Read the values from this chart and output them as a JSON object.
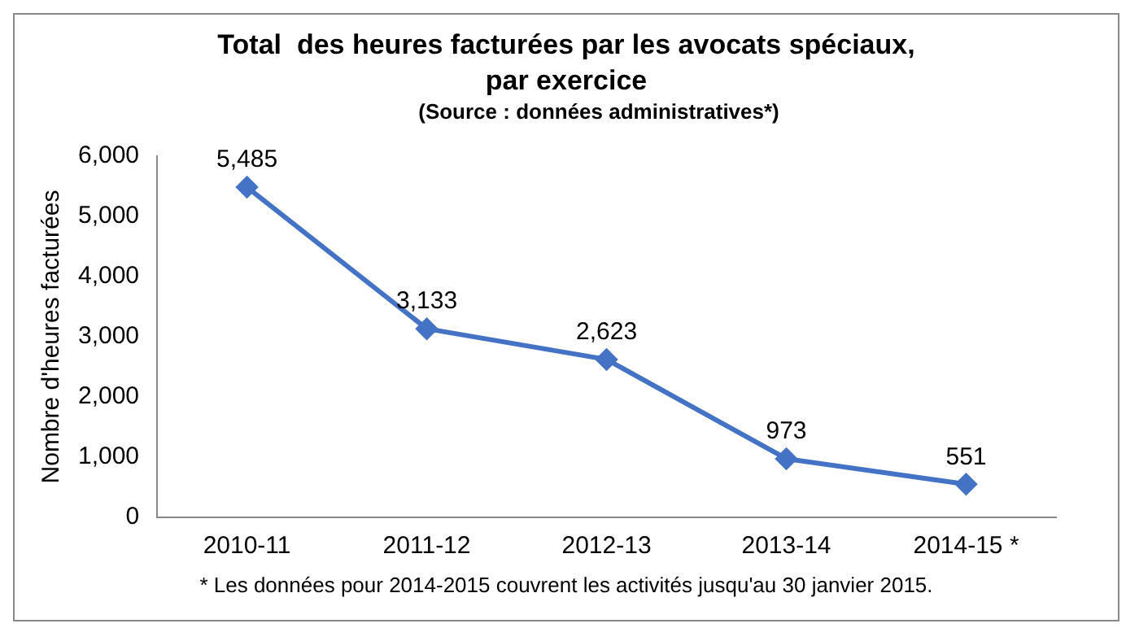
{
  "chart_data": {
    "type": "line",
    "title": "Total  des heures facturées par les avocats spéciaux, par exercice",
    "subtitle": "(Source : données administratives*)",
    "ylabel": "Nombre d'heures facturées",
    "categories": [
      "2010-11",
      "2011-12",
      "2012-13",
      "2013-14",
      "2014-15 *"
    ],
    "series": [
      {
        "color": "#4472c4",
        "values": [
          5485,
          3133,
          2623,
          973,
          551
        ],
        "value_labels": [
          "5,485",
          "3,133",
          "2,623",
          "973",
          "551"
        ]
      }
    ],
    "ylim": [
      0,
      6000
    ],
    "yticks": [
      {
        "value": 0,
        "label": "0"
      },
      {
        "value": 1000,
        "label": "1,000"
      },
      {
        "value": 2000,
        "label": "2,000"
      },
      {
        "value": 3000,
        "label": "3,000"
      },
      {
        "value": 4000,
        "label": "4,000"
      },
      {
        "value": 5000,
        "label": "5,000"
      },
      {
        "value": 6000,
        "label": "6,000"
      }
    ],
    "grid": false,
    "legend": false,
    "marker": "diamond",
    "line_style": "solid",
    "annotations": [
      "* Les données pour 2014-2015 couvrent les activités jusqu'au 30 janvier 2015."
    ]
  }
}
